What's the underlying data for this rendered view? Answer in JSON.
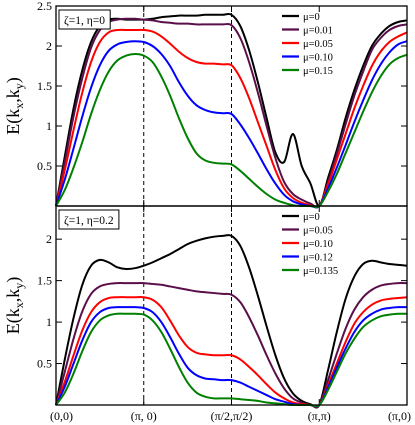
{
  "chart_data": [
    {
      "type": "line",
      "panel": "top",
      "annotation": "ζ=1, η=0",
      "ylabel": "E(kx,ky)",
      "ylabel_parts": [
        "E(k",
        "x",
        ",k",
        "y",
        ")"
      ],
      "ylim": [
        0,
        2.5
      ],
      "yticks": [
        0.5,
        1,
        1.5,
        2,
        2.5
      ],
      "ytick_labels": [
        "0.5",
        "1",
        "1.5",
        "2",
        "2.5"
      ],
      "xlim": [
        0,
        4
      ],
      "xticks": [
        0,
        1,
        2,
        3,
        4
      ],
      "vlines": [
        1,
        2
      ],
      "legend_position": "top-right",
      "series": [
        {
          "name": "μ=0",
          "color": "#000000",
          "x": [
            0,
            0.1,
            0.2,
            0.3,
            0.4,
            0.5,
            0.6,
            0.7,
            0.8,
            0.9,
            1.0,
            1.1,
            1.2,
            1.3,
            1.4,
            1.5,
            1.6,
            1.7,
            1.8,
            1.9,
            2.0,
            2.1,
            2.2,
            2.3,
            2.4,
            2.5,
            2.6,
            2.7,
            2.8,
            2.9,
            3.0,
            3.1,
            3.2,
            3.3,
            3.4,
            3.5,
            3.6,
            3.7,
            3.8,
            3.9,
            4.0
          ],
          "y": [
            0,
            0.62,
            1.22,
            1.7,
            2.05,
            2.25,
            2.33,
            2.34,
            2.33,
            2.33,
            2.33,
            2.34,
            2.36,
            2.37,
            2.38,
            2.38,
            2.38,
            2.39,
            2.39,
            2.39,
            2.39,
            2.25,
            1.95,
            1.55,
            1.1,
            0.67,
            0.55,
            0.9,
            0.5,
            0.28,
            0.0,
            0.35,
            0.7,
            1.1,
            1.45,
            1.75,
            2.0,
            2.15,
            2.25,
            2.3,
            2.32
          ]
        },
        {
          "name": "μ=0.01",
          "color": "#5a0f4a",
          "x": [
            0,
            0.1,
            0.2,
            0.3,
            0.4,
            0.5,
            0.6,
            0.7,
            0.8,
            0.9,
            1.0,
            1.1,
            1.2,
            1.3,
            1.4,
            1.5,
            1.6,
            1.7,
            1.8,
            1.9,
            2.0,
            2.1,
            2.2,
            2.3,
            2.4,
            2.5,
            2.6,
            2.7,
            2.8,
            2.9,
            3.0,
            3.1,
            3.2,
            3.3,
            3.4,
            3.5,
            3.6,
            3.7,
            3.8,
            3.9,
            4.0
          ],
          "y": [
            0,
            0.55,
            1.12,
            1.6,
            1.98,
            2.2,
            2.3,
            2.33,
            2.34,
            2.34,
            2.33,
            2.32,
            2.3,
            2.29,
            2.28,
            2.28,
            2.27,
            2.27,
            2.27,
            2.27,
            2.26,
            2.1,
            1.8,
            1.42,
            1.0,
            0.6,
            0.3,
            0.15,
            0.08,
            0.03,
            0.0,
            0.3,
            0.65,
            1.02,
            1.38,
            1.68,
            1.95,
            2.1,
            2.2,
            2.25,
            2.27
          ]
        },
        {
          "name": "μ=0.05",
          "color": "#ff0000",
          "x": [
            0,
            0.1,
            0.2,
            0.3,
            0.4,
            0.5,
            0.6,
            0.7,
            0.8,
            0.9,
            1.0,
            1.1,
            1.2,
            1.3,
            1.4,
            1.5,
            1.6,
            1.7,
            1.8,
            1.9,
            2.0,
            2.1,
            2.2,
            2.3,
            2.4,
            2.5,
            2.6,
            2.7,
            2.8,
            2.9,
            3.0,
            3.1,
            3.2,
            3.3,
            3.4,
            3.5,
            3.6,
            3.7,
            3.8,
            3.9,
            4.0
          ],
          "y": [
            0,
            0.45,
            0.95,
            1.42,
            1.8,
            2.05,
            2.17,
            2.2,
            2.2,
            2.2,
            2.2,
            2.18,
            2.12,
            2.03,
            1.93,
            1.85,
            1.8,
            1.78,
            1.78,
            1.77,
            1.76,
            1.6,
            1.35,
            1.05,
            0.75,
            0.45,
            0.22,
            0.1,
            0.04,
            0.01,
            0.0,
            0.27,
            0.58,
            0.9,
            1.22,
            1.5,
            1.75,
            1.93,
            2.05,
            2.12,
            2.17
          ]
        },
        {
          "name": "μ=0.10",
          "color": "#0000ff",
          "x": [
            0,
            0.1,
            0.2,
            0.3,
            0.4,
            0.5,
            0.6,
            0.7,
            0.8,
            0.9,
            1.0,
            1.1,
            1.2,
            1.3,
            1.4,
            1.5,
            1.6,
            1.7,
            1.8,
            1.9,
            2.0,
            2.1,
            2.2,
            2.3,
            2.4,
            2.5,
            2.6,
            2.7,
            2.8,
            2.9,
            3.0,
            3.1,
            3.2,
            3.3,
            3.4,
            3.5,
            3.6,
            3.7,
            3.8,
            3.9,
            4.0
          ],
          "y": [
            0,
            0.33,
            0.72,
            1.12,
            1.48,
            1.76,
            1.94,
            2.02,
            2.05,
            2.06,
            2.05,
            2.0,
            1.9,
            1.75,
            1.55,
            1.38,
            1.26,
            1.2,
            1.17,
            1.16,
            1.15,
            1.02,
            0.85,
            0.66,
            0.46,
            0.28,
            0.14,
            0.06,
            0.02,
            0.0,
            0.0,
            0.22,
            0.48,
            0.76,
            1.05,
            1.32,
            1.57,
            1.77,
            1.92,
            2.02,
            2.06
          ]
        },
        {
          "name": "μ=0.15",
          "color": "#008000",
          "x": [
            0,
            0.1,
            0.2,
            0.3,
            0.4,
            0.5,
            0.6,
            0.7,
            0.8,
            0.9,
            1.0,
            1.1,
            1.2,
            1.3,
            1.4,
            1.5,
            1.6,
            1.7,
            1.8,
            1.9,
            2.0,
            2.1,
            2.2,
            2.3,
            2.4,
            2.5,
            2.6,
            2.7,
            2.8,
            2.9,
            3.0,
            3.1,
            3.2,
            3.3,
            3.4,
            3.5,
            3.6,
            3.7,
            3.8,
            3.9,
            4.0
          ],
          "y": [
            0,
            0.2,
            0.48,
            0.8,
            1.15,
            1.45,
            1.68,
            1.82,
            1.88,
            1.9,
            1.88,
            1.8,
            1.62,
            1.38,
            1.1,
            0.85,
            0.66,
            0.57,
            0.54,
            0.53,
            0.52,
            0.44,
            0.34,
            0.24,
            0.15,
            0.08,
            0.04,
            0.01,
            0.0,
            0.0,
            0.0,
            0.18,
            0.4,
            0.66,
            0.92,
            1.18,
            1.42,
            1.62,
            1.77,
            1.85,
            1.89
          ]
        }
      ]
    },
    {
      "type": "line",
      "panel": "bottom",
      "annotation": "ζ=1, η=0.2",
      "ylabel": "E(kx,ky)",
      "ylabel_parts": [
        "E(k",
        "x",
        ",k",
        "y",
        ")"
      ],
      "ylim": [
        0,
        2.4
      ],
      "yticks": [
        0.5,
        1,
        1.5,
        2
      ],
      "ytick_labels": [
        "0.5",
        "1",
        "1.5",
        "2"
      ],
      "xlim": [
        0,
        4
      ],
      "xticks": [
        0,
        1,
        2,
        3,
        4
      ],
      "xtick_labels": [
        "(0,0)",
        "(π, 0)",
        "(π/2,π/2)",
        "(π,π)",
        "(π,0)"
      ],
      "vlines": [
        1,
        2
      ],
      "legend_position": "top-right",
      "series": [
        {
          "name": "μ=0",
          "color": "#000000",
          "x": [
            0,
            0.1,
            0.2,
            0.3,
            0.4,
            0.5,
            0.6,
            0.7,
            0.8,
            0.9,
            1.0,
            1.1,
            1.2,
            1.3,
            1.4,
            1.5,
            1.6,
            1.7,
            1.8,
            1.9,
            2.0,
            2.1,
            2.2,
            2.3,
            2.4,
            2.5,
            2.6,
            2.7,
            2.8,
            2.9,
            3.0,
            3.1,
            3.2,
            3.3,
            3.4,
            3.5,
            3.6,
            3.7,
            3.8,
            3.9,
            4.0
          ],
          "y": [
            0,
            0.55,
            1.05,
            1.45,
            1.68,
            1.75,
            1.72,
            1.66,
            1.64,
            1.65,
            1.68,
            1.72,
            1.77,
            1.82,
            1.88,
            1.94,
            1.98,
            2.01,
            2.03,
            2.04,
            2.04,
            1.92,
            1.66,
            1.32,
            0.95,
            0.6,
            0.32,
            0.14,
            0.05,
            0.01,
            0.0,
            0.42,
            0.88,
            1.28,
            1.55,
            1.7,
            1.74,
            1.72,
            1.7,
            1.69,
            1.68
          ]
        },
        {
          "name": "μ=0.05",
          "color": "#5a0f4a",
          "x": [
            0,
            0.1,
            0.2,
            0.3,
            0.4,
            0.5,
            0.6,
            0.7,
            0.8,
            0.9,
            1.0,
            1.1,
            1.2,
            1.3,
            1.4,
            1.5,
            1.6,
            1.7,
            1.8,
            1.9,
            2.0,
            2.1,
            2.2,
            2.3,
            2.4,
            2.5,
            2.6,
            2.7,
            2.8,
            2.9,
            3.0,
            3.1,
            3.2,
            3.3,
            3.4,
            3.5,
            3.6,
            3.7,
            3.8,
            3.9,
            4.0
          ],
          "y": [
            0,
            0.4,
            0.8,
            1.13,
            1.34,
            1.43,
            1.46,
            1.47,
            1.47,
            1.47,
            1.47,
            1.46,
            1.45,
            1.43,
            1.41,
            1.39,
            1.37,
            1.36,
            1.35,
            1.34,
            1.33,
            1.24,
            1.06,
            0.84,
            0.6,
            0.38,
            0.2,
            0.08,
            0.03,
            0.0,
            0.0,
            0.3,
            0.62,
            0.92,
            1.15,
            1.3,
            1.39,
            1.44,
            1.46,
            1.47,
            1.47
          ]
        },
        {
          "name": "μ=0.10",
          "color": "#ff0000",
          "x": [
            0,
            0.1,
            0.2,
            0.3,
            0.4,
            0.5,
            0.6,
            0.7,
            0.8,
            0.9,
            1.0,
            1.1,
            1.2,
            1.3,
            1.4,
            1.5,
            1.6,
            1.7,
            1.8,
            1.9,
            2.0,
            2.1,
            2.2,
            2.3,
            2.4,
            2.5,
            2.6,
            2.7,
            2.8,
            2.9,
            3.0,
            3.1,
            3.2,
            3.3,
            3.4,
            3.5,
            3.6,
            3.7,
            3.8,
            3.9,
            4.0
          ],
          "y": [
            0,
            0.28,
            0.6,
            0.9,
            1.12,
            1.24,
            1.29,
            1.3,
            1.3,
            1.3,
            1.3,
            1.27,
            1.18,
            1.02,
            0.84,
            0.7,
            0.63,
            0.61,
            0.6,
            0.6,
            0.6,
            0.55,
            0.46,
            0.36,
            0.25,
            0.15,
            0.08,
            0.03,
            0.01,
            0.0,
            0.0,
            0.24,
            0.5,
            0.76,
            0.98,
            1.12,
            1.21,
            1.26,
            1.28,
            1.29,
            1.3
          ]
        },
        {
          "name": "μ=0.12",
          "color": "#0000ff",
          "x": [
            0,
            0.1,
            0.2,
            0.3,
            0.4,
            0.5,
            0.6,
            0.7,
            0.8,
            0.9,
            1.0,
            1.1,
            1.2,
            1.3,
            1.4,
            1.5,
            1.6,
            1.7,
            1.8,
            1.9,
            2.0,
            2.1,
            2.2,
            2.3,
            2.4,
            2.5,
            2.6,
            2.7,
            2.8,
            2.9,
            3.0,
            3.1,
            3.2,
            3.3,
            3.4,
            3.5,
            3.6,
            3.7,
            3.8,
            3.9,
            4.0
          ],
          "y": [
            0,
            0.22,
            0.5,
            0.78,
            1.0,
            1.12,
            1.17,
            1.18,
            1.18,
            1.18,
            1.17,
            1.12,
            1.0,
            0.82,
            0.62,
            0.45,
            0.36,
            0.32,
            0.31,
            0.3,
            0.3,
            0.27,
            0.22,
            0.17,
            0.12,
            0.07,
            0.04,
            0.01,
            0.0,
            0.0,
            0.0,
            0.21,
            0.45,
            0.68,
            0.88,
            1.02,
            1.1,
            1.15,
            1.17,
            1.18,
            1.18
          ]
        },
        {
          "name": "μ=0.135",
          "color": "#008000",
          "x": [
            0,
            0.1,
            0.2,
            0.3,
            0.4,
            0.5,
            0.6,
            0.7,
            0.8,
            0.9,
            1.0,
            1.1,
            1.2,
            1.3,
            1.4,
            1.5,
            1.6,
            1.7,
            1.8,
            1.9,
            2.0,
            2.1,
            2.2,
            2.3,
            2.4,
            2.5,
            2.6,
            2.7,
            2.8,
            2.9,
            3.0,
            3.1,
            3.2,
            3.3,
            3.4,
            3.5,
            3.6,
            3.7,
            3.8,
            3.9,
            4.0
          ],
          "y": [
            0,
            0.15,
            0.38,
            0.65,
            0.88,
            1.02,
            1.08,
            1.1,
            1.1,
            1.1,
            1.09,
            1.02,
            0.88,
            0.68,
            0.46,
            0.27,
            0.15,
            0.1,
            0.08,
            0.08,
            0.08,
            0.07,
            0.06,
            0.05,
            0.03,
            0.02,
            0.01,
            0.0,
            0.0,
            0.0,
            0.0,
            0.18,
            0.4,
            0.62,
            0.8,
            0.94,
            1.02,
            1.07,
            1.09,
            1.1,
            1.1
          ]
        }
      ]
    }
  ]
}
